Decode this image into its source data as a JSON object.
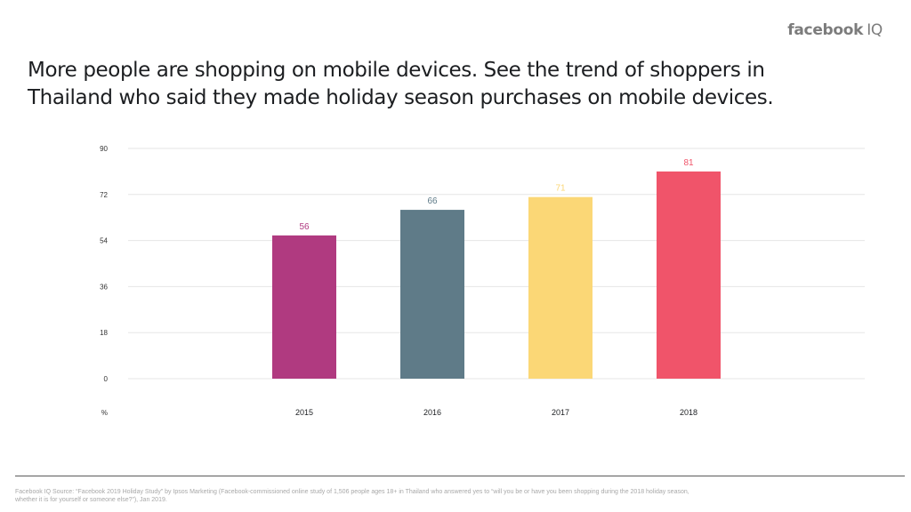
{
  "brand": {
    "name": "facebook",
    "suffix": "IQ"
  },
  "headline": "More people are shopping on mobile devices. See the trend of shoppers in Thailand who said they made holiday season purchases on mobile devices.",
  "footnote": "Facebook IQ Source: “Facebook 2019 Holiday Study” by Ipsos Marketing (Facebook-commissioned online study of 1,506 people ages 18+ in Thailand who answered yes to “will you be or have you been shopping during the 2018 holiday season, whether it is for yourself or someone else?”), Jan 2019.",
  "chart_data": {
    "type": "bar",
    "categories": [
      "2015",
      "2016",
      "2017",
      "2018"
    ],
    "values": [
      56,
      66,
      71,
      81
    ],
    "colors": [
      "#b03a80",
      "#5f7b88",
      "#fbd776",
      "#f0546a"
    ],
    "ylim": [
      0,
      90
    ],
    "yticks": [
      0,
      18,
      36,
      54,
      72,
      90
    ],
    "yunit": "%",
    "grid": true,
    "data_labels": [
      "56",
      "66",
      "71",
      "81"
    ]
  }
}
